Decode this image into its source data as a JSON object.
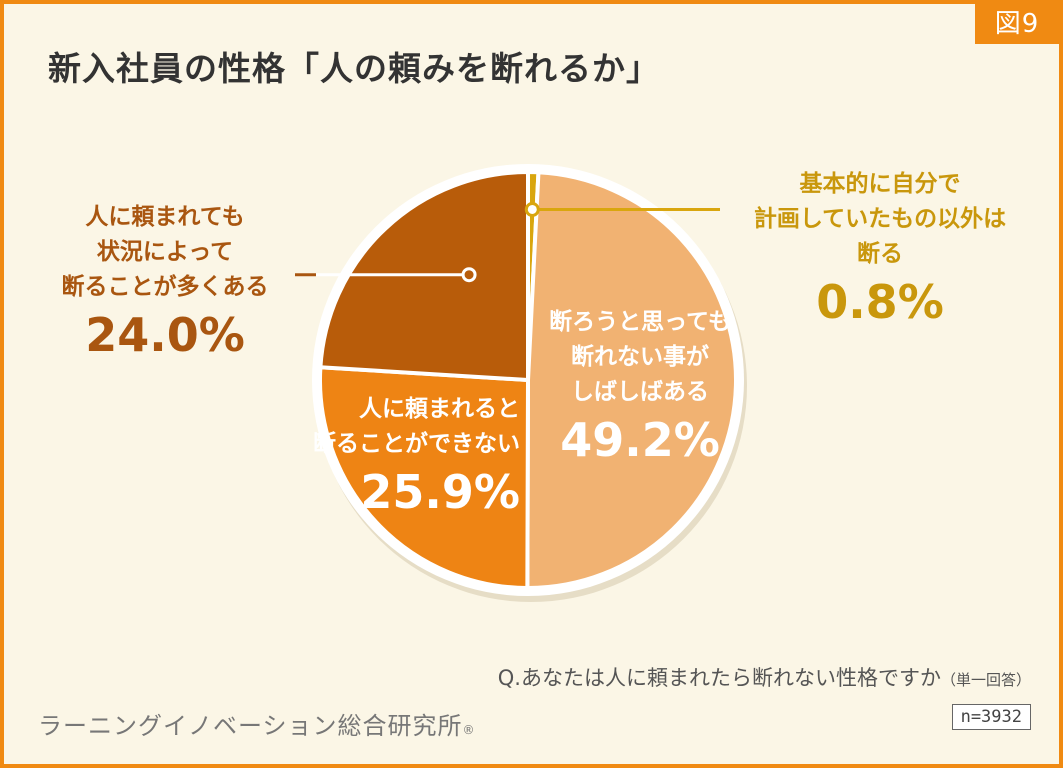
{
  "figure_badge": "図9",
  "title": "新入社員の性格「人の頼みを断れるか」",
  "question": "Q.あなたは人に頼まれたら断れない性格ですか",
  "question_note": "（単一回答）",
  "organization": "ラーニングイノベーション総合研究所",
  "registered_mark": "®",
  "sample_size": "n=3932",
  "colors": {
    "frame": "#f08a12",
    "background": "#fbf6e6",
    "slice_refuse_situational": "#b85c0a",
    "slice_cannot_refuse": "#ee8414",
    "slice_often_cannot": "#f1b272",
    "slice_except_plan": "#d9a60e"
  },
  "chart_data": {
    "type": "pie",
    "title": "新入社員の性格「人の頼みを断れるか」",
    "slices": [
      {
        "lines": [
          "断ろうと思っても",
          "断れない事が",
          "しばしばある"
        ],
        "value": 49.2,
        "value_label": "49.2%",
        "color": "#f1b272",
        "text_color": "#ffffff"
      },
      {
        "lines": [
          "人に頼まれると",
          "断ることができない"
        ],
        "value": 25.9,
        "value_label": "25.9%",
        "color": "#ee8414",
        "text_color": "#ffffff"
      },
      {
        "lines": [
          "人に頼まれても",
          "状況によって",
          "断ることが多くある"
        ],
        "value": 24.0,
        "value_label": "24.0%",
        "color": "#b85c0a",
        "text_color": "#a95610"
      },
      {
        "lines": [
          "基本的に自分で",
          "計画していたもの以外は",
          "断る"
        ],
        "value": 0.8,
        "value_label": "0.8%",
        "color": "#d9a60e",
        "text_color": "#c9970c"
      }
    ]
  }
}
